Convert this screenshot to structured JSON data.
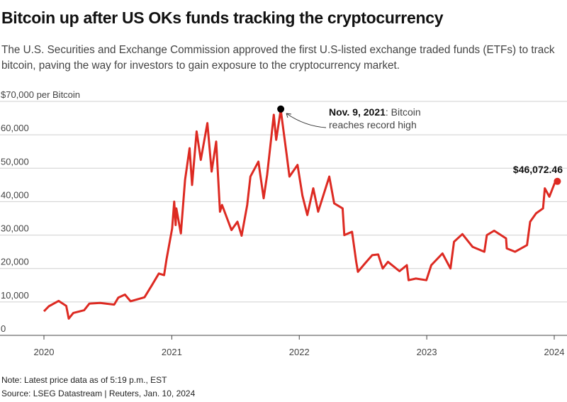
{
  "title": "Bitcoin up after US OKs funds tracking the cryptocurrency",
  "subtitle": "The U.S. Securities and Exchange Commission approved the first U.S-listed exchange traded funds (ETFs) to track bitcoin, paving the way for investors to gain exposure to the cryptocurrency market.",
  "footer": {
    "note": "Note: Latest price data as of 5:19 p.m., EST",
    "source": "Source: LSEG Datastream | Reuters, Jan. 10, 2024"
  },
  "chart_data": {
    "type": "line",
    "title": "Bitcoin up after US OKs funds tracking the cryptocurrency",
    "ylabel": "$70,000 per Bitcoin",
    "ylim": [
      0,
      70000
    ],
    "xlim": [
      "2020-01-01",
      "2024-01-01"
    ],
    "grid": true,
    "y_ticks": [
      {
        "value": 0,
        "label": "0"
      },
      {
        "value": 10000,
        "label": "10,000"
      },
      {
        "value": 20000,
        "label": "20,000"
      },
      {
        "value": 30000,
        "label": "30,000"
      },
      {
        "value": 40000,
        "label": "40,000"
      },
      {
        "value": 50000,
        "label": "50,000"
      },
      {
        "value": 60000,
        "label": "60,000"
      },
      {
        "value": 70000,
        "label": "$70,000 per Bitcoin"
      }
    ],
    "x_ticks": [
      {
        "value": "2020-01-01",
        "label": "2020"
      },
      {
        "value": "2021-01-01",
        "label": "2021"
      },
      {
        "value": "2022-01-01",
        "label": "2022"
      },
      {
        "value": "2023-01-01",
        "label": "2023"
      },
      {
        "value": "2024-01-01",
        "label": "2024"
      }
    ],
    "line_color": "#dd2a22",
    "series": [
      {
        "points": [
          [
            "2020-01-01",
            7200
          ],
          [
            "2020-01-15",
            8700
          ],
          [
            "2020-02-12",
            10300
          ],
          [
            "2020-03-05",
            8800
          ],
          [
            "2020-03-12",
            5000
          ],
          [
            "2020-03-25",
            6700
          ],
          [
            "2020-04-25",
            7500
          ],
          [
            "2020-05-10",
            9500
          ],
          [
            "2020-06-10",
            9700
          ],
          [
            "2020-07-20",
            9200
          ],
          [
            "2020-08-01",
            11300
          ],
          [
            "2020-08-20",
            12200
          ],
          [
            "2020-09-05",
            10200
          ],
          [
            "2020-10-15",
            11400
          ],
          [
            "2020-11-05",
            15000
          ],
          [
            "2020-11-25",
            18500
          ],
          [
            "2020-12-10",
            18000
          ],
          [
            "2020-12-17",
            22800
          ],
          [
            "2021-01-02",
            32000
          ],
          [
            "2021-01-08",
            40000
          ],
          [
            "2021-01-12",
            33000
          ],
          [
            "2021-01-14",
            38000
          ],
          [
            "2021-01-27",
            30500
          ],
          [
            "2021-02-08",
            46500
          ],
          [
            "2021-02-21",
            56000
          ],
          [
            "2021-02-28",
            45000
          ],
          [
            "2021-03-13",
            61000
          ],
          [
            "2021-03-25",
            52500
          ],
          [
            "2021-04-13",
            63500
          ],
          [
            "2021-04-25",
            49000
          ],
          [
            "2021-05-08",
            58000
          ],
          [
            "2021-05-19",
            37000
          ],
          [
            "2021-05-25",
            39000
          ],
          [
            "2021-06-21",
            31500
          ],
          [
            "2021-07-08",
            34000
          ],
          [
            "2021-07-20",
            29800
          ],
          [
            "2021-08-05",
            39000
          ],
          [
            "2021-08-14",
            47500
          ],
          [
            "2021-09-06",
            52000
          ],
          [
            "2021-09-21",
            41000
          ],
          [
            "2021-10-01",
            48000
          ],
          [
            "2021-10-20",
            66000
          ],
          [
            "2021-10-27",
            58500
          ],
          [
            "2021-11-09",
            67500
          ],
          [
            "2021-11-26",
            54000
          ],
          [
            "2021-12-04",
            47500
          ],
          [
            "2021-12-27",
            51000
          ],
          [
            "2022-01-10",
            41800
          ],
          [
            "2022-01-24",
            36000
          ],
          [
            "2022-02-10",
            44000
          ],
          [
            "2022-02-24",
            37000
          ],
          [
            "2022-03-28",
            47500
          ],
          [
            "2022-04-11",
            39500
          ],
          [
            "2022-05-05",
            38000
          ],
          [
            "2022-05-10",
            30000
          ],
          [
            "2022-06-01",
            31000
          ],
          [
            "2022-06-13",
            22000
          ],
          [
            "2022-06-18",
            19000
          ],
          [
            "2022-07-08",
            21500
          ],
          [
            "2022-07-29",
            24000
          ],
          [
            "2022-08-15",
            24200
          ],
          [
            "2022-08-28",
            20000
          ],
          [
            "2022-09-12",
            22000
          ],
          [
            "2022-10-15",
            19200
          ],
          [
            "2022-11-05",
            21000
          ],
          [
            "2022-11-10",
            16500
          ],
          [
            "2022-12-01",
            17000
          ],
          [
            "2022-12-31",
            16500
          ],
          [
            "2023-01-14",
            21000
          ],
          [
            "2023-02-15",
            24500
          ],
          [
            "2023-03-10",
            20000
          ],
          [
            "2023-03-20",
            28000
          ],
          [
            "2023-04-13",
            30300
          ],
          [
            "2023-05-12",
            26500
          ],
          [
            "2023-06-15",
            25000
          ],
          [
            "2023-06-22",
            30000
          ],
          [
            "2023-07-13",
            31300
          ],
          [
            "2023-08-16",
            29000
          ],
          [
            "2023-08-18",
            26000
          ],
          [
            "2023-09-11",
            25000
          ],
          [
            "2023-10-15",
            27000
          ],
          [
            "2023-10-24",
            34000
          ],
          [
            "2023-11-10",
            36500
          ],
          [
            "2023-11-30",
            38000
          ],
          [
            "2023-12-05",
            44000
          ],
          [
            "2023-12-18",
            41500
          ],
          [
            "2024-01-02",
            45500
          ],
          [
            "2024-01-10",
            46072.46
          ]
        ]
      }
    ],
    "annotations": [
      {
        "date": "2021-11-09",
        "value": 67500,
        "bold": "Nov. 9, 2021",
        "text": ": Bitcoin",
        "text2": "reaches record high",
        "marker_color": "#000000"
      },
      {
        "date": "2024-01-10",
        "value": 46072.46,
        "label": "$46,072.46",
        "marker_color": "#dd2a22"
      }
    ]
  }
}
